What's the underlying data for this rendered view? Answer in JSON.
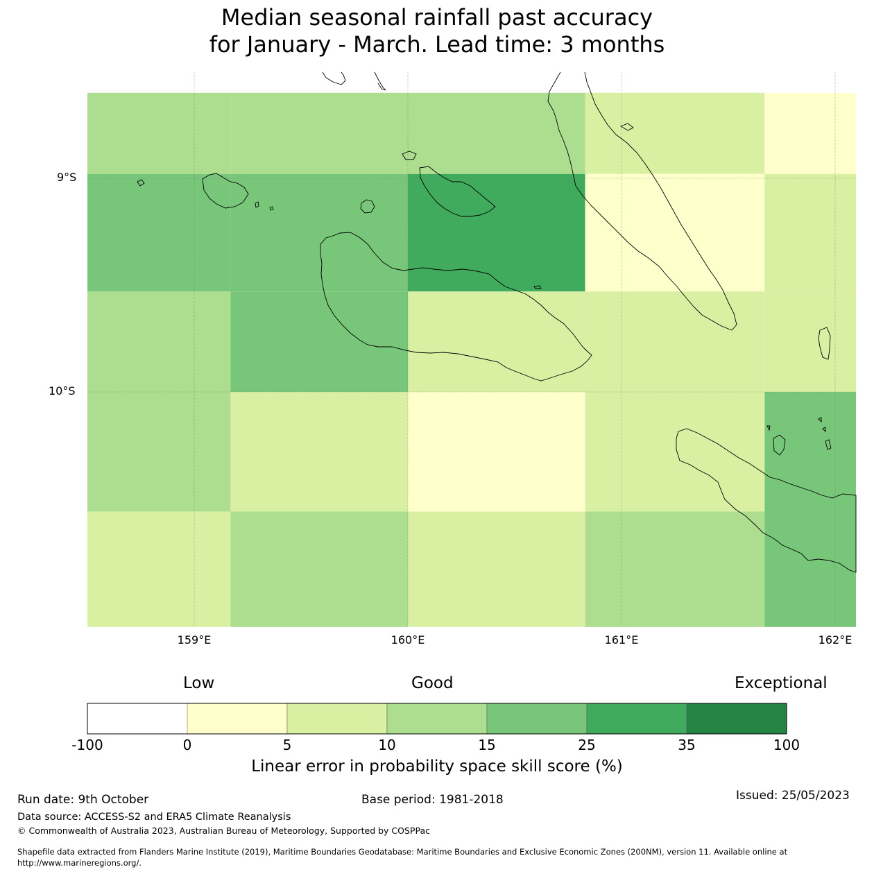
{
  "title": {
    "line1": "Median seasonal rainfall past accuracy",
    "line2": "for January - March. Lead time: 3 months"
  },
  "map": {
    "lat_labels": [
      "9°S",
      "10°S"
    ],
    "lon_labels": [
      "159°E",
      "160°E",
      "161°E",
      "162°E"
    ],
    "grid_cells": [
      {
        "lon": [
          158.5,
          159.17
        ],
        "lat": [
          -8.6,
          -8.98
        ],
        "skill_class": "10-15"
      },
      {
        "lon": [
          159.17,
          160.0
        ],
        "lat": [
          -8.6,
          -8.98
        ],
        "skill_class": "10-15"
      },
      {
        "lon": [
          160.0,
          160.83
        ],
        "lat": [
          -8.6,
          -8.98
        ],
        "skill_class": "10-15"
      },
      {
        "lon": [
          160.83,
          161.67
        ],
        "lat": [
          -8.6,
          -8.98
        ],
        "skill_class": "5-10"
      },
      {
        "lon": [
          161.67,
          162.1
        ],
        "lat": [
          -8.6,
          -8.98
        ],
        "skill_class": "0-5"
      },
      {
        "lon": [
          158.5,
          159.17
        ],
        "lat": [
          -8.98,
          -9.53
        ],
        "skill_class": "15-25"
      },
      {
        "lon": [
          159.17,
          160.0
        ],
        "lat": [
          -8.98,
          -9.53
        ],
        "skill_class": "15-25"
      },
      {
        "lon": [
          160.0,
          160.83
        ],
        "lat": [
          -8.98,
          -9.53
        ],
        "skill_class": "25-35"
      },
      {
        "lon": [
          160.83,
          161.67
        ],
        "lat": [
          -8.98,
          -9.53
        ],
        "skill_class": "0-5"
      },
      {
        "lon": [
          161.67,
          162.1
        ],
        "lat": [
          -8.98,
          -9.53
        ],
        "skill_class": "5-10"
      },
      {
        "lon": [
          158.5,
          159.17
        ],
        "lat": [
          -9.53,
          -10.0
        ],
        "skill_class": "10-15"
      },
      {
        "lon": [
          159.17,
          160.0
        ],
        "lat": [
          -9.53,
          -10.0
        ],
        "skill_class": "15-25"
      },
      {
        "lon": [
          160.0,
          160.83
        ],
        "lat": [
          -9.53,
          -10.0
        ],
        "skill_class": "5-10"
      },
      {
        "lon": [
          160.83,
          161.67
        ],
        "lat": [
          -9.53,
          -10.0
        ],
        "skill_class": "5-10"
      },
      {
        "lon": [
          161.67,
          162.1
        ],
        "lat": [
          -9.53,
          -10.0
        ],
        "skill_class": "5-10"
      },
      {
        "lon": [
          158.5,
          159.17
        ],
        "lat": [
          -10.0,
          -10.56
        ],
        "skill_class": "10-15"
      },
      {
        "lon": [
          159.17,
          160.0
        ],
        "lat": [
          -10.0,
          -10.56
        ],
        "skill_class": "5-10"
      },
      {
        "lon": [
          160.0,
          160.83
        ],
        "lat": [
          -10.0,
          -10.56
        ],
        "skill_class": "0-5"
      },
      {
        "lon": [
          160.83,
          161.67
        ],
        "lat": [
          -10.0,
          -10.56
        ],
        "skill_class": "5-10"
      },
      {
        "lon": [
          161.67,
          162.1
        ],
        "lat": [
          -10.0,
          -10.56
        ],
        "skill_class": "15-25"
      },
      {
        "lon": [
          158.5,
          159.17
        ],
        "lat": [
          -10.56,
          -11.1
        ],
        "skill_class": "5-10"
      },
      {
        "lon": [
          159.17,
          160.0
        ],
        "lat": [
          -10.56,
          -11.1
        ],
        "skill_class": "10-15"
      },
      {
        "lon": [
          160.0,
          160.83
        ],
        "lat": [
          -10.56,
          -11.1
        ],
        "skill_class": "5-10"
      },
      {
        "lon": [
          160.83,
          161.67
        ],
        "lat": [
          -10.56,
          -11.1
        ],
        "skill_class": "10-15"
      },
      {
        "lon": [
          161.67,
          162.1
        ],
        "lat": [
          -10.56,
          -11.1
        ],
        "skill_class": "15-25"
      }
    ]
  },
  "colorbar": {
    "category_labels": {
      "low": "Low",
      "good": "Good",
      "exceptional": "Exceptional"
    },
    "boundaries": [
      "-100",
      "0",
      "5",
      "10",
      "15",
      "25",
      "35",
      "100"
    ],
    "colors": [
      "#ffffff",
      "#ffffcc",
      "#d9f0a3",
      "#addd8e",
      "#78c679",
      "#41ab5d",
      "#238443"
    ],
    "class_keys": [
      "neg",
      "0-5",
      "5-10",
      "10-15",
      "15-25",
      "25-35",
      "35-100"
    ],
    "axis_label": "Linear error in probability space skill score (%)"
  },
  "footer": {
    "run_date": "Run date: 9th October",
    "base_period": "Base period: 1981-2018",
    "issued": "Issued: 25/05/2023",
    "data_source": "Data source: ACCESS-S2 and ERA5 Climate Reanalysis",
    "copyright": "© Commonwealth of Australia 2023, Australian Bureau of Meteorology, Supported by COSPPac",
    "shapefile_line1": "Shapefile data extracted from Flanders Marine Institute (2019), Maritime Boundaries Geodatabase: Maritime Boundaries and Exclusive Economic Zones (200NM), version 11. Available online at",
    "shapefile_line2": "http://www.marineregions.org/."
  }
}
